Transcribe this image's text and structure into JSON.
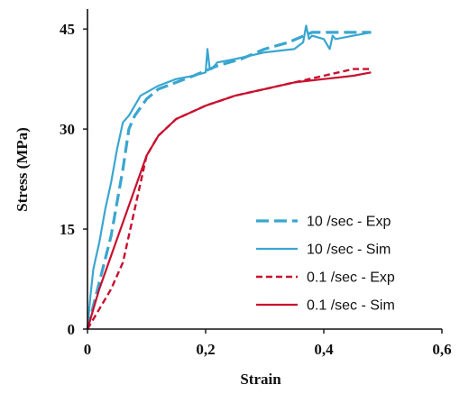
{
  "chart_data": {
    "type": "line",
    "title": "",
    "xlabel": "Strain",
    "ylabel": "Stress (MPa)",
    "xlim": [
      0,
      0.6
    ],
    "ylim": [
      0,
      48
    ],
    "x_ticks": [
      0,
      0.2,
      0.4,
      0.6
    ],
    "x_tick_labels": [
      "0",
      "0,2",
      "0,4",
      "0,6"
    ],
    "y_ticks": [
      0,
      15,
      30,
      45
    ],
    "y_tick_labels": [
      "0",
      "15",
      "30",
      "45"
    ],
    "grid": false,
    "legend_position": "bottom-right",
    "colors": {
      "rate_10": "#3aa6d0",
      "rate_0_1": "#c8102e",
      "axis": "#111111"
    },
    "series": [
      {
        "name": "10 /sec - Exp",
        "color": "#3aa6d0",
        "dash": "dashed-long",
        "x": [
          0,
          0.02,
          0.04,
          0.06,
          0.07,
          0.08,
          0.1,
          0.12,
          0.15,
          0.18,
          0.22,
          0.26,
          0.3,
          0.34,
          0.38,
          0.42,
          0.46,
          0.48
        ],
        "y": [
          0,
          7,
          14,
          24,
          30,
          32,
          34.5,
          36,
          37,
          38,
          39.5,
          40.5,
          42,
          43,
          44.5,
          44.5,
          44.5,
          44.5
        ]
      },
      {
        "name": "10 /sec - Sim",
        "color": "#3aa6d0",
        "dash": "solid",
        "x": [
          0,
          0.005,
          0.01,
          0.02,
          0.03,
          0.04,
          0.05,
          0.06,
          0.07,
          0.08,
          0.09,
          0.1,
          0.12,
          0.15,
          0.18,
          0.2,
          0.203,
          0.207,
          0.21,
          0.22,
          0.25,
          0.3,
          0.35,
          0.365,
          0.37,
          0.375,
          0.38,
          0.4,
          0.41,
          0.415,
          0.42,
          0.45,
          0.48
        ],
        "y": [
          0,
          5,
          9,
          13,
          18,
          22,
          27,
          31,
          32,
          33.5,
          35,
          35.5,
          36.5,
          37.5,
          38,
          38.5,
          42,
          39,
          39,
          40,
          40.5,
          41.5,
          42,
          43,
          45.5,
          43.5,
          44,
          43.5,
          42,
          44,
          43.5,
          44,
          44.5
        ]
      },
      {
        "name": "0.1 /sec - Exp",
        "color": "#c8102e",
        "dash": "dashed",
        "x": [
          0,
          0.02,
          0.04,
          0.06,
          0.08,
          0.1,
          0.12,
          0.15,
          0.2,
          0.25,
          0.3,
          0.35,
          0.4,
          0.45,
          0.48
        ],
        "y": [
          0,
          3,
          6,
          10,
          18,
          26,
          29,
          31.5,
          33.5,
          35,
          36,
          37,
          38,
          39,
          39
        ]
      },
      {
        "name": "0.1 /sec - Sim",
        "color": "#c8102e",
        "dash": "solid",
        "x": [
          0,
          0.01,
          0.02,
          0.04,
          0.06,
          0.08,
          0.1,
          0.12,
          0.15,
          0.2,
          0.25,
          0.3,
          0.35,
          0.4,
          0.45,
          0.48
        ],
        "y": [
          0,
          3,
          6,
          11,
          16,
          21,
          26,
          29,
          31.5,
          33.5,
          35,
          36,
          37,
          37.5,
          38,
          38.5
        ]
      }
    ]
  }
}
